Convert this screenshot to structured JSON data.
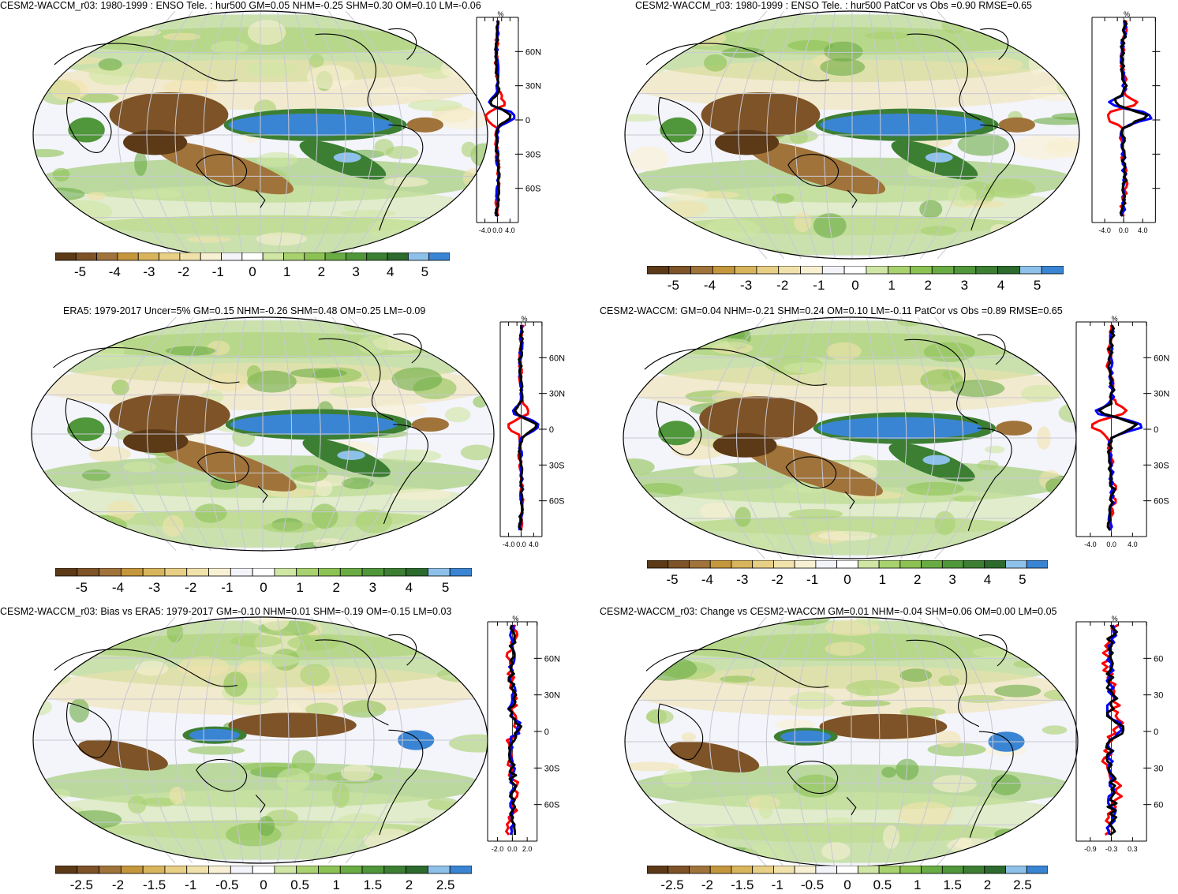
{
  "colors": {
    "scale": [
      "#5c3a17",
      "#7d5327",
      "#a0733b",
      "#c4973c",
      "#d8b55c",
      "#e8cf86",
      "#f1e2ac",
      "#f8f0d2",
      "#f3f3fa",
      "#ffffff",
      "#cfe6a4",
      "#a8d16f",
      "#8cc253",
      "#6aac44",
      "#4f973a",
      "#3c7f33",
      "#2c6a2d",
      "#8ec1ea",
      "#3a85d3"
    ],
    "ocean": "#f3f3fa",
    "land_line": "#000000",
    "obs_line": "#ff0000",
    "model_line": "#0000ff",
    "diff_line": "#000000"
  },
  "panels": [
    {
      "title": "CESM2-WACCM_r03: 1980-1999 : ENSO Tele. : hur500 GM=0.05 NHM=-0.25 SHM=0.30 OM=0.10 LM=-0.06",
      "profile_unit": "%",
      "lat_labels": [
        "60N",
        "30N",
        "0",
        "30S",
        "60S"
      ],
      "x_ticks": [
        "-4.0",
        "0.0",
        "4.0"
      ],
      "cbar_labels": [
        "-5",
        "-4",
        "-3",
        "-2",
        "-1",
        "0",
        "1",
        "2",
        "3",
        "4",
        "5"
      ]
    },
    {
      "title": "CESM2-WACCM_r03: 1980-1999 : ENSO Tele. : hur500 PatCor vs Obs =0.90 RMSE=0.65",
      "profile_unit": "%",
      "lat_labels": [
        "",
        "",
        "",
        "",
        ""
      ],
      "x_ticks": [
        "-4.0",
        "0.0",
        "4.0"
      ],
      "cbar_labels": [
        "-5",
        "-4",
        "-3",
        "-2",
        "-1",
        "0",
        "1",
        "2",
        "3",
        "4",
        "5"
      ]
    },
    {
      "title": "ERA5: 1979-2017 Uncer=5% GM=0.15 NHM=-0.26 SHM=0.48 OM=0.25 LM=-0.09",
      "profile_unit": "%",
      "lat_labels": [
        "60N",
        "30N",
        "0",
        "30S",
        "60S"
      ],
      "x_ticks": [
        "-4.0",
        "0.0",
        "4.0"
      ],
      "cbar_labels": [
        "-5",
        "-4",
        "-3",
        "-2",
        "-1",
        "0",
        "1",
        "2",
        "3",
        "4",
        "5"
      ]
    },
    {
      "title": "CESM2-WACCM: GM=0.04 NHM=-0.21 SHM=0.24 OM=0.10 LM=-0.11 PatCor vs Obs =0.89 RMSE=0.65",
      "profile_unit": "%",
      "lat_labels": [
        "60N",
        "30N",
        "0",
        "30S",
        "60S"
      ],
      "x_ticks": [
        "-4.0",
        "0.0",
        "4.0"
      ],
      "cbar_labels": [
        "-5",
        "-4",
        "-3",
        "-2",
        "-1",
        "0",
        "1",
        "2",
        "3",
        "4",
        "5"
      ]
    },
    {
      "title": "CESM2-WACCM_r03: Bias vs ERA5: 1979-2017 GM=-0.10 NHM=0.01 SHM=-0.19 OM=-0.15 LM=0.03",
      "profile_unit": "%",
      "lat_labels": [
        "60N",
        "30N",
        "0",
        "30S",
        "60S"
      ],
      "x_ticks": [
        "-2.0",
        "0.0",
        "2.0"
      ],
      "cbar_labels": [
        "-2.5",
        "-2",
        "-1.5",
        "-1",
        "-0.5",
        "0",
        "0.5",
        "1",
        "1.5",
        "2",
        "2.5"
      ]
    },
    {
      "title": "CESM2-WACCM_r03: Change vs CESM2-WACCM GM=0.01 NHM=-0.04 SHM=0.06 OM=0.00 LM=0.05",
      "profile_unit": "%",
      "lat_labels": [
        "60",
        "30",
        "0",
        "30",
        "60"
      ],
      "x_ticks": [
        "-0.9",
        "-0.3",
        "0.3"
      ],
      "cbar_labels": [
        "-2.5",
        "-2",
        "-1.5",
        "-1",
        "-0.5",
        "0",
        "0.5",
        "1",
        "1.5",
        "2",
        "2.5"
      ]
    }
  ]
}
